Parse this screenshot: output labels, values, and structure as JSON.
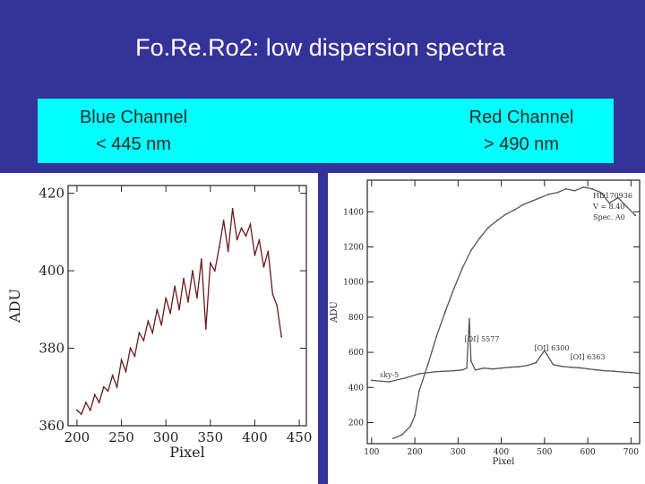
{
  "title": "Fo.Re.Ro2: low dispersion spectra",
  "channels": {
    "blue": {
      "name": "Blue Channel",
      "range": "< 445 nm"
    },
    "red": {
      "name": "Red Channel",
      "range": "> 490 nm"
    }
  },
  "colors": {
    "background": "#333399",
    "band": "#00ffff",
    "blue_trace": "#6b1a1a",
    "red_trace": "#555555"
  },
  "chart_data": [
    {
      "type": "line",
      "xlabel": "Pixel",
      "ylabel": "ADU",
      "xlim": [
        190,
        458
      ],
      "ylim": [
        360,
        422
      ],
      "xticks": [
        200,
        250,
        300,
        350,
        400,
        450
      ],
      "yticks": [
        360,
        380,
        400,
        420
      ],
      "series": [
        {
          "x": [
            200,
            205,
            210,
            215,
            220,
            225,
            230,
            235,
            240,
            245,
            250,
            255,
            260,
            265,
            270,
            275,
            280,
            285,
            290,
            295,
            300,
            305,
            310,
            315,
            320,
            325,
            330,
            335,
            340,
            345,
            350,
            355,
            360,
            365,
            370,
            375,
            380,
            385,
            390,
            395,
            400,
            405,
            410,
            415,
            420,
            425,
            430
          ],
          "y": [
            364,
            363,
            366,
            364,
            368,
            366,
            370,
            369,
            373,
            370,
            377,
            374,
            380,
            378,
            384,
            382,
            387,
            384,
            390,
            386,
            393,
            389,
            396,
            390,
            398,
            392,
            400,
            393,
            403,
            385,
            402,
            400,
            406,
            413,
            405,
            416,
            408,
            411,
            409,
            412,
            404,
            408,
            401,
            405,
            394,
            391,
            383
          ]
        }
      ]
    },
    {
      "type": "line",
      "xlabel": "Pixel",
      "ylabel": "ADU",
      "xlim": [
        90,
        720
      ],
      "ylim": [
        80,
        1580
      ],
      "xticks": [
        100,
        200,
        300,
        400,
        500,
        600,
        700
      ],
      "yticks": [
        200,
        400,
        600,
        800,
        1000,
        1200,
        1400
      ],
      "annotations": [
        "HD170936",
        "V = 8.40",
        "Spec. A0",
        "sky-5",
        "[OI] 5577",
        "[OI] 6300",
        "[OI] 6363"
      ],
      "series": [
        {
          "name": "HD170936",
          "x": [
            150,
            170,
            190,
            200,
            210,
            230,
            250,
            270,
            290,
            310,
            330,
            350,
            370,
            390,
            410,
            430,
            450,
            470,
            490,
            510,
            530,
            550,
            570,
            590,
            610,
            630,
            650,
            670,
            690,
            710
          ],
          "y": [
            110,
            130,
            180,
            240,
            380,
            530,
            690,
            830,
            960,
            1080,
            1180,
            1250,
            1310,
            1350,
            1385,
            1410,
            1440,
            1460,
            1480,
            1500,
            1510,
            1530,
            1520,
            1540,
            1530,
            1510,
            1450,
            1480,
            1430,
            1380
          ]
        },
        {
          "name": "sky-5",
          "x": [
            100,
            140,
            180,
            210,
            250,
            290,
            310,
            320,
            326,
            330,
            340,
            360,
            380,
            400,
            420,
            440,
            460,
            480,
            500,
            520,
            540,
            560,
            580,
            600,
            620,
            640,
            660,
            680,
            700,
            720
          ],
          "y": [
            440,
            432,
            455,
            478,
            490,
            495,
            500,
            510,
            790,
            550,
            500,
            510,
            505,
            510,
            515,
            518,
            525,
            540,
            610,
            530,
            520,
            515,
            512,
            506,
            500,
            495,
            493,
            488,
            485,
            480
          ]
        }
      ]
    }
  ]
}
